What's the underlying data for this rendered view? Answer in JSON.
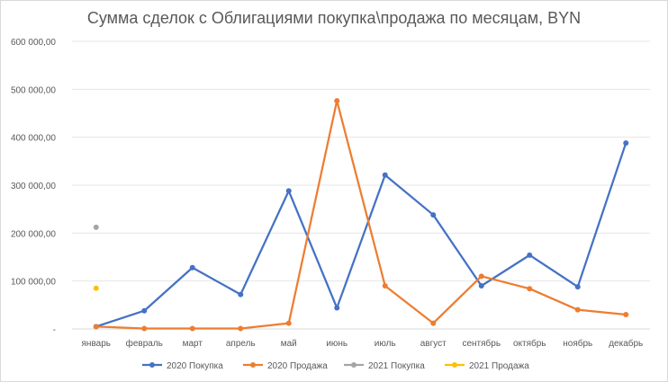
{
  "chart_data": {
    "type": "line",
    "title": "Сумма сделок с Облигациями покупка\\продажа по месяцам, BYN",
    "categories": [
      "январь",
      "февраль",
      "март",
      "апрель",
      "май",
      "июнь",
      "июль",
      "август",
      "сентябрь",
      "октябрь",
      "ноябрь",
      "декабрь"
    ],
    "y_tick_labels": [
      "-",
      "100 000,00",
      "200 000,00",
      "300 000,00",
      "400 000,00",
      "500 000,00",
      "600 000,00"
    ],
    "ylim": [
      0,
      600000
    ],
    "grid": true,
    "legend_position": "bottom",
    "series": [
      {
        "name": "2020 Покупка",
        "color": "#4472c4",
        "values": [
          5000,
          38000,
          128000,
          72000,
          288000,
          44000,
          321000,
          238000,
          90000,
          154000,
          88000,
          388000
        ]
      },
      {
        "name": "2020 Продажа",
        "color": "#ed7d31",
        "values": [
          5000,
          1000,
          1000,
          1000,
          12000,
          476000,
          90000,
          12000,
          110000,
          84000,
          40000,
          30000
        ]
      },
      {
        "name": "2021 Покупка",
        "color": "#a5a5a5",
        "values": [
          212000,
          null,
          null,
          null,
          null,
          null,
          null,
          null,
          null,
          null,
          null,
          null
        ]
      },
      {
        "name": "2021 Продажа",
        "color": "#ffc000",
        "values": [
          85000,
          null,
          null,
          null,
          null,
          null,
          null,
          null,
          null,
          null,
          null,
          null
        ]
      }
    ]
  }
}
